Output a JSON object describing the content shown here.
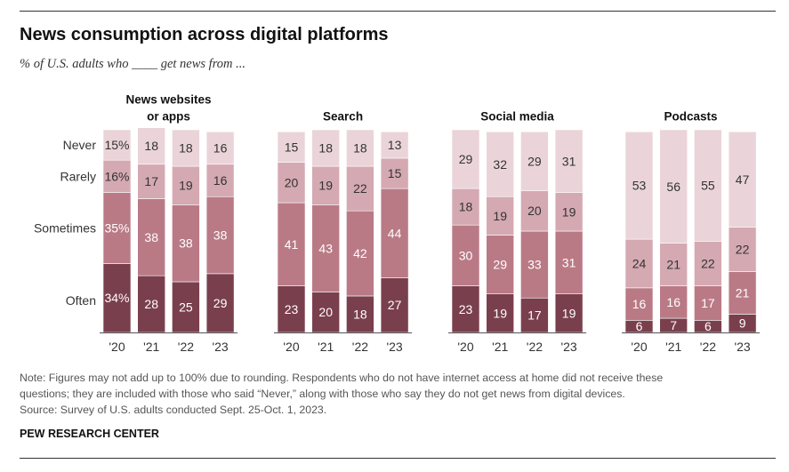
{
  "title": "News consumption across digital platforms",
  "subtitle": "% of U.S. adults who ____ get news from ...",
  "notes": [
    "Note: Figures may not add up to 100% due to rounding. Respondents who do not have internet access at home did not receive these",
    "questions; they are included with those who said “Never,” along with those who say they do not get news from digital devices.",
    "Source: Survey of U.S. adults conducted Sept. 25-Oct. 1, 2023."
  ],
  "brand": "PEW RESEARCH CENTER",
  "colors": {
    "Often": "#7a3f4d",
    "Sometimes": "#b97a86",
    "Rarely": "#d4a9b2",
    "Never": "#ead4d9",
    "label_light": "#ffffff",
    "label_dark": "#333333"
  },
  "chart_data": {
    "type": "bar",
    "stacked": true,
    "categories": [
      "'20",
      "'21",
      "'22",
      "'23"
    ],
    "stack_order_bottom_to_top": [
      "Often",
      "Sometimes",
      "Rarely",
      "Never"
    ],
    "row_labels": [
      "Never",
      "Rarely",
      "Sometimes",
      "Often"
    ],
    "ylim": [
      0,
      100
    ],
    "grid": false,
    "panels": [
      {
        "title_lines": [
          "News websites",
          "or apps"
        ],
        "series": [
          {
            "name": "Often",
            "values": [
              34,
              28,
              25,
              29
            ],
            "labels": [
              "34%",
              "28",
              "25",
              "29"
            ]
          },
          {
            "name": "Sometimes",
            "values": [
              35,
              38,
              38,
              38
            ],
            "labels": [
              "35%",
              "38",
              "38",
              "38"
            ]
          },
          {
            "name": "Rarely",
            "values": [
              16,
              17,
              19,
              16
            ],
            "labels": [
              "16%",
              "17",
              "19",
              "16"
            ]
          },
          {
            "name": "Never",
            "values": [
              15,
              18,
              18,
              16
            ],
            "labels": [
              "15%",
              "18",
              "18",
              "16"
            ]
          }
        ]
      },
      {
        "title_lines": [
          "Search"
        ],
        "series": [
          {
            "name": "Often",
            "values": [
              23,
              20,
              18,
              27
            ],
            "labels": [
              "23",
              "20",
              "18",
              "27"
            ]
          },
          {
            "name": "Sometimes",
            "values": [
              41,
              43,
              42,
              44
            ],
            "labels": [
              "41",
              "43",
              "42",
              "44"
            ]
          },
          {
            "name": "Rarely",
            "values": [
              20,
              19,
              22,
              15
            ],
            "labels": [
              "20",
              "19",
              "22",
              "15"
            ]
          },
          {
            "name": "Never",
            "values": [
              15,
              18,
              18,
              13
            ],
            "labels": [
              "15",
              "18",
              "18",
              "13"
            ]
          }
        ]
      },
      {
        "title_lines": [
          "Social media"
        ],
        "series": [
          {
            "name": "Often",
            "values": [
              23,
              19,
              17,
              19
            ],
            "labels": [
              "23",
              "19",
              "17",
              "19"
            ]
          },
          {
            "name": "Sometimes",
            "values": [
              30,
              29,
              33,
              31
            ],
            "labels": [
              "30",
              "29",
              "33",
              "31"
            ]
          },
          {
            "name": "Rarely",
            "values": [
              18,
              19,
              20,
              19
            ],
            "labels": [
              "18",
              "19",
              "20",
              "19"
            ]
          },
          {
            "name": "Never",
            "values": [
              29,
              32,
              29,
              31
            ],
            "labels": [
              "29",
              "32",
              "29",
              "31"
            ]
          }
        ]
      },
      {
        "title_lines": [
          "Podcasts"
        ],
        "series": [
          {
            "name": "Often",
            "values": [
              6,
              7,
              6,
              9
            ],
            "labels": [
              "6",
              "7",
              "6",
              "9"
            ]
          },
          {
            "name": "Sometimes",
            "values": [
              16,
              16,
              17,
              21
            ],
            "labels": [
              "16",
              "16",
              "17",
              "21"
            ]
          },
          {
            "name": "Rarely",
            "values": [
              24,
              21,
              22,
              22
            ],
            "labels": [
              "24",
              "21",
              "22",
              "22"
            ]
          },
          {
            "name": "Never",
            "values": [
              53,
              56,
              55,
              47
            ],
            "labels": [
              "53",
              "56",
              "55",
              "47"
            ]
          }
        ]
      }
    ]
  }
}
